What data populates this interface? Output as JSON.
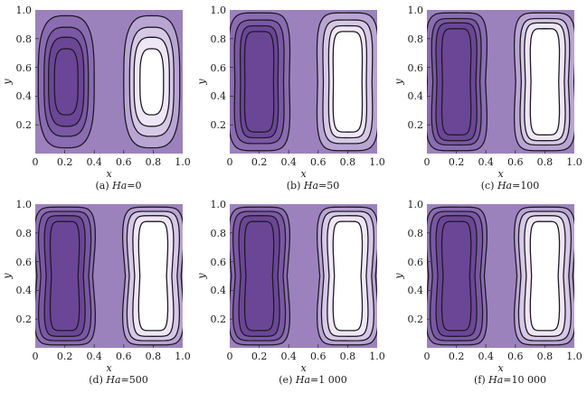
{
  "figure": {
    "colors": {
      "background": "#9c82bd",
      "level_dark": [
        "#6b4696",
        "#7a58a4",
        "#8a6cb1"
      ],
      "level_light": [
        "#b9a5d2",
        "#d6c9e6",
        "#efe7f5",
        "#ffffff"
      ],
      "contour_line": "#1f1a26"
    }
  },
  "chart_data": [
    {
      "type": "heatmap",
      "panel": "a",
      "caption_prefix": "(a)",
      "param_name": "Ha",
      "param_value": "0",
      "xlabel": "x",
      "ylabel": "y",
      "xticks": [
        "0",
        "0.2",
        "0.4",
        "0.6",
        "0.8",
        "1.0"
      ],
      "yticks": [
        "0.2",
        "0.4",
        "0.6",
        "0.8",
        "1.0"
      ],
      "xlim": [
        0,
        1
      ],
      "ylim": [
        0,
        1
      ],
      "description": "Two counter-rotating cells; left cell dark (min) centered at x≈0.2,y≈0.5; right cell light (max) centered at x≈0.8,y≈0.5; elliptic contours"
    },
    {
      "type": "heatmap",
      "panel": "b",
      "caption_prefix": "(b)",
      "param_name": "Ha",
      "param_value": "50",
      "xlabel": "x",
      "ylabel": "y",
      "xticks": [
        "0",
        "0.2",
        "0.4",
        "0.6",
        "0.8",
        "1.0"
      ],
      "yticks": [
        "0.2",
        "0.4",
        "0.6",
        "0.8",
        "1.0"
      ],
      "xlim": [
        0,
        1
      ],
      "ylim": [
        0,
        1
      ],
      "description": "Cells elongated vertically, cores shifted toward walls (x≈0.15 and x≈0.85)"
    },
    {
      "type": "heatmap",
      "panel": "c",
      "caption_prefix": "(c)",
      "param_name": "Ha",
      "param_value": "100",
      "xlabel": "x",
      "ylabel": "y",
      "xticks": [
        "0",
        "0.2",
        "0.4",
        "0.6",
        "0.8",
        "1.0"
      ],
      "yticks": [
        "0.2",
        "0.4",
        "0.6",
        "0.8",
        "1.0"
      ],
      "xlim": [
        0,
        1
      ],
      "ylim": [
        0,
        1
      ],
      "description": "Cells further elongated, slight waist at mid-height"
    },
    {
      "type": "heatmap",
      "panel": "d",
      "caption_prefix": "(d)",
      "param_name": "Ha",
      "param_value": "500",
      "xlabel": "x",
      "ylabel": "y",
      "xticks": [
        "0",
        "0.2",
        "0.4",
        "0.6",
        "0.8",
        "1.0"
      ],
      "yticks": [
        "0.2",
        "0.4",
        "0.6",
        "0.8",
        "1.0"
      ],
      "xlim": [
        0,
        1
      ],
      "ylim": [
        0,
        1
      ],
      "description": "Boundary-layer dominated cells with pronounced waist"
    },
    {
      "type": "heatmap",
      "panel": "e",
      "caption_prefix": "(e)",
      "param_name": "Ha",
      "param_value": "1 000",
      "xlabel": "x",
      "ylabel": "y",
      "xticks": [
        "0",
        "0.2",
        "0.4",
        "0.6",
        "0.8",
        "1.0"
      ],
      "yticks": [
        "0.2",
        "0.4",
        "0.6",
        "0.8",
        "1.0"
      ],
      "xlim": [
        0,
        1
      ],
      "ylim": [
        0,
        1
      ],
      "description": "Nearly identical to Ha=500"
    },
    {
      "type": "heatmap",
      "panel": "f",
      "caption_prefix": "(f)",
      "param_name": "Ha",
      "param_value": "10 000",
      "xlabel": "x",
      "ylabel": "y",
      "xticks": [
        "0",
        "0.2",
        "0.4",
        "0.6",
        "0.8",
        "1.0"
      ],
      "yticks": [
        "0.2",
        "0.4",
        "0.6",
        "0.8",
        "1.0"
      ],
      "xlim": [
        0,
        1
      ],
      "ylim": [
        0,
        1
      ],
      "description": "Nearly identical to Ha=1000"
    }
  ]
}
